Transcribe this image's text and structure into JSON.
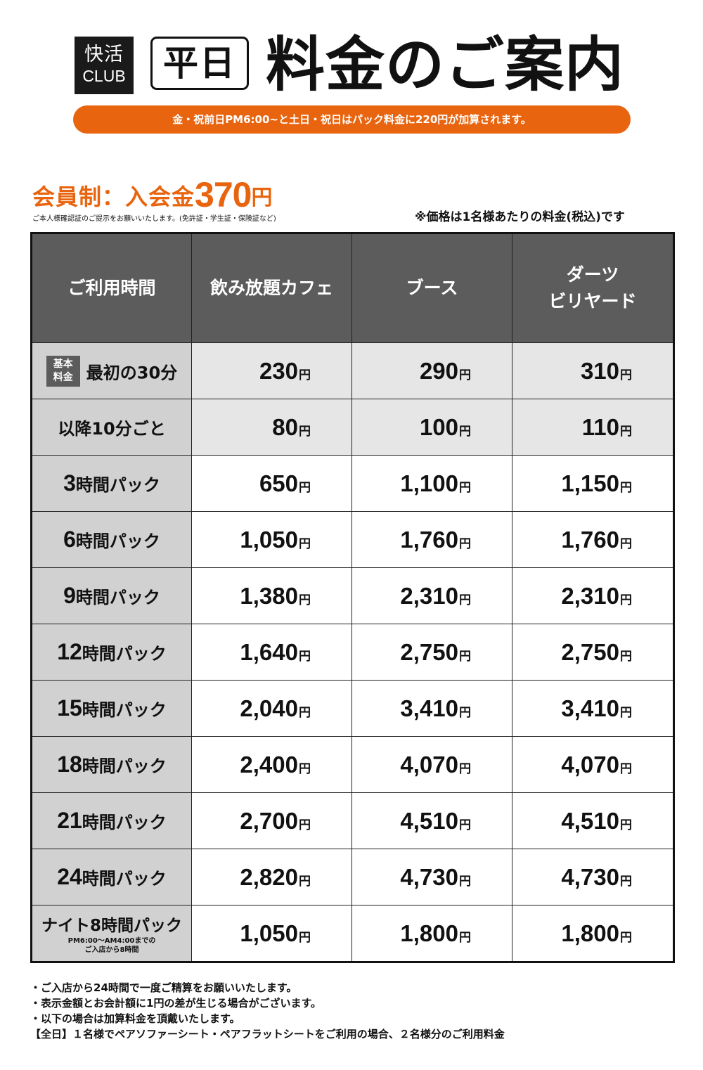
{
  "logo": {
    "line1": "快活",
    "line2": "CLUB"
  },
  "header": {
    "day_label": "平日",
    "title": "料金のご案内",
    "banner": "金・祝前日PM6:00~と土日・祝日はパック料金に220円が加算されます。"
  },
  "membership": {
    "label": "会員制：入会金",
    "fee": "370",
    "yen": "円",
    "id_note": "ご本人様確認証のご提示をお願いいたします。(免許証・学生証・保険証など)"
  },
  "tax_note": "※価格は1名様あたりの料金(税込)です",
  "table": {
    "headers": [
      "ご利用時間",
      "飲み放題カフェ",
      "ブース",
      "ダーツ",
      "ビリヤード"
    ],
    "yen": "円",
    "base_badge": [
      "基本",
      "料金"
    ],
    "rows": [
      {
        "prefix": "",
        "label": "最初の30分",
        "values": [
          "230",
          "290",
          "310"
        ]
      },
      {
        "prefix": "",
        "label": "以降10分ごと",
        "values": [
          "80",
          "100",
          "110"
        ]
      },
      {
        "prefix": "3",
        "label": "時間パック",
        "values": [
          "650",
          "1,100",
          "1,150"
        ]
      },
      {
        "prefix": "6",
        "label": "時間パック",
        "values": [
          "1,050",
          "1,760",
          "1,760"
        ]
      },
      {
        "prefix": "9",
        "label": "時間パック",
        "values": [
          "1,380",
          "2,310",
          "2,310"
        ]
      },
      {
        "prefix": "12",
        "label": "時間パック",
        "values": [
          "1,640",
          "2,750",
          "2,750"
        ]
      },
      {
        "prefix": "15",
        "label": "時間パック",
        "values": [
          "2,040",
          "3,410",
          "3,410"
        ]
      },
      {
        "prefix": "18",
        "label": "時間パック",
        "values": [
          "2,400",
          "4,070",
          "4,070"
        ]
      },
      {
        "prefix": "21",
        "label": "時間パック",
        "values": [
          "2,700",
          "4,510",
          "4,510"
        ]
      },
      {
        "prefix": "24",
        "label": "時間パック",
        "values": [
          "2,820",
          "4,730",
          "4,730"
        ]
      },
      {
        "prefix": "",
        "label": "ナイト8時間パック",
        "sub1": "PM6:00～AM4:00までの",
        "sub2": "ご入店から8時間",
        "values": [
          "1,050",
          "1,800",
          "1,800"
        ]
      }
    ]
  },
  "footnotes": [
    "・ご入店から24時間で一度ご精算をお願いいたします。",
    "・表示金額とお会計額に1円の差が生じる場合がございます。",
    "・以下の場合は加算料金を頂戴いたします。",
    "【全日】１名様でペアソファーシート・ペアフラットシートをご利用の場合、２名様分のご利用料金"
  ],
  "colors": {
    "accent": "#e8640e",
    "header_bg": "#5c5c5c",
    "label_bg": "#d1d1d1",
    "base_row_bg": "#e6e6e6"
  }
}
